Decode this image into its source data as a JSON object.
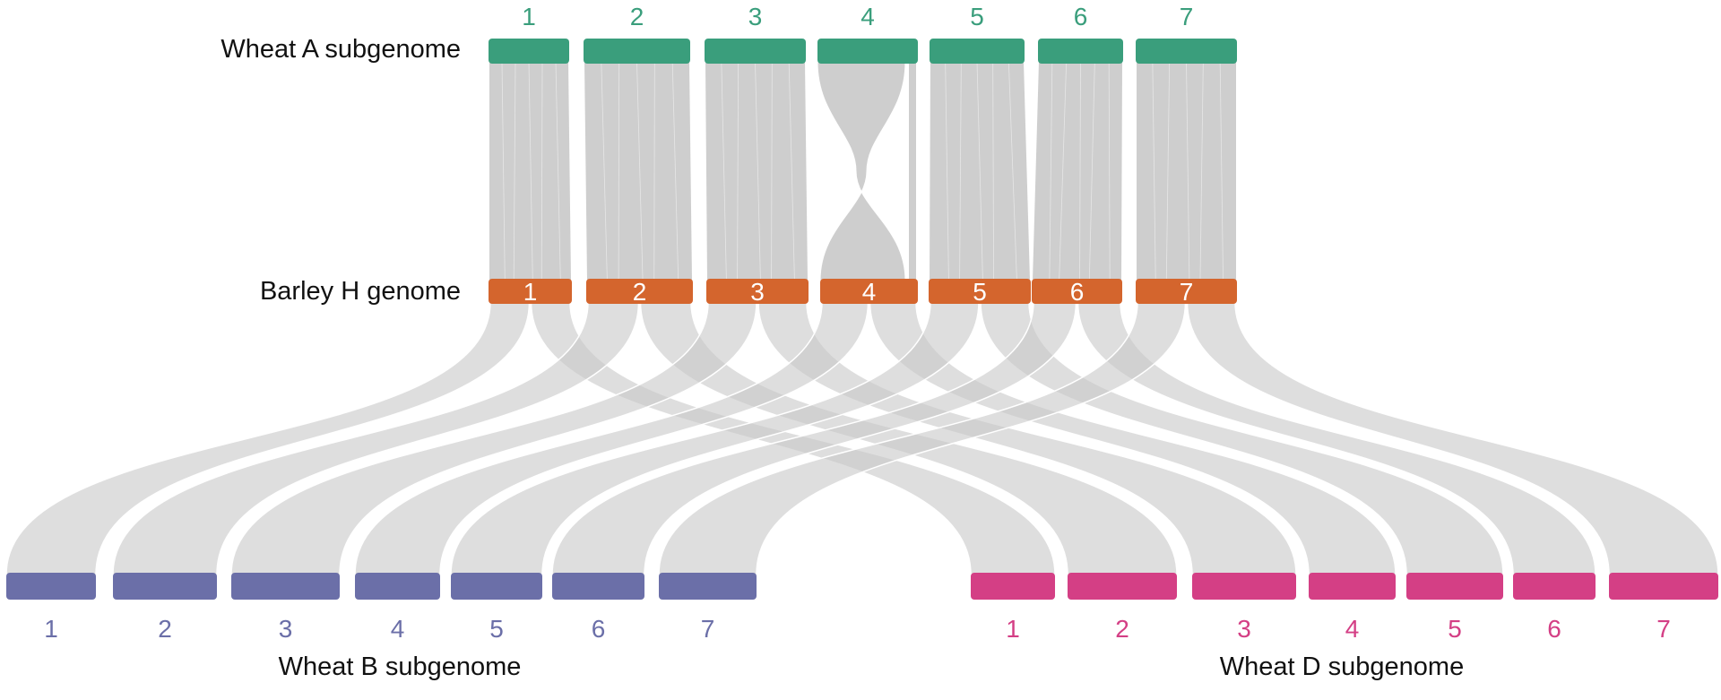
{
  "tracks": {
    "a": {
      "label": "Wheat A subgenome",
      "color": "#3a9e7c",
      "chromosomes": [
        "1",
        "2",
        "3",
        "4",
        "5",
        "6",
        "7"
      ]
    },
    "h": {
      "label": "Barley H genome",
      "color": "#d4652d",
      "chromosomes": [
        "1",
        "2",
        "3",
        "4",
        "5",
        "6",
        "7"
      ]
    },
    "b": {
      "label": "Wheat B subgenome",
      "color": "#6b6fa8",
      "chromosomes": [
        "1",
        "2",
        "3",
        "4",
        "5",
        "6",
        "7"
      ]
    },
    "d": {
      "label": "Wheat D subgenome",
      "color": "#d43f85",
      "chromosomes": [
        "1",
        "2",
        "3",
        "4",
        "5",
        "6",
        "7"
      ]
    }
  },
  "ribbon_color": "#c9c9c9"
}
